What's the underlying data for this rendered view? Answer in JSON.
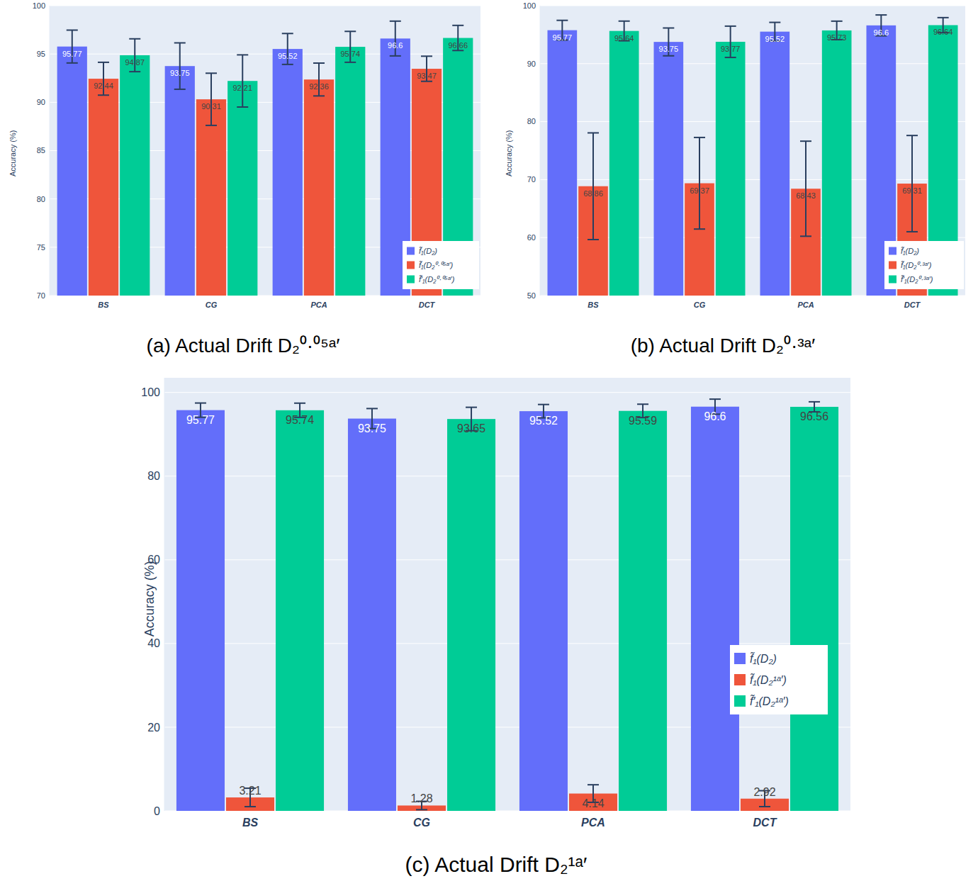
{
  "chart_data": [
    {
      "type": "bar",
      "title": "(a) Actual Drift D₂⁰·⁰⁵ᵃ′",
      "ylabel": "Accuracy (%)",
      "categories": [
        "BS",
        "CG",
        "PCA",
        "DCT"
      ],
      "series": [
        {
          "name": "f̃₁(D₂)",
          "color": "#636efa",
          "values": [
            95.77,
            93.75,
            95.52,
            96.6
          ],
          "errors": [
            1.7,
            2.4,
            1.6,
            1.8
          ]
        },
        {
          "name": "f̃₁(D₂⁰·⁰⁵ᵃ′)",
          "color": "#ef553b",
          "values": [
            92.44,
            90.31,
            92.36,
            93.47
          ],
          "errors": [
            1.7,
            2.7,
            1.7,
            1.3
          ]
        },
        {
          "name": "f̃′₁(D₂⁰·⁰⁵ᵃ′)",
          "color": "#00cc96",
          "values": [
            94.87,
            92.21,
            95.74,
            96.66
          ],
          "errors": [
            1.7,
            2.7,
            1.6,
            1.3
          ]
        }
      ],
      "ylim": [
        70,
        100
      ],
      "yticks": [
        70,
        75,
        80,
        85,
        90,
        95,
        100
      ],
      "grid": true,
      "legend": "bottom-right",
      "data_labels": true
    },
    {
      "type": "bar",
      "title": "(b) Actual Drift D₂⁰·³ᵃ′",
      "ylabel": "Accuracy (%)",
      "categories": [
        "BS",
        "CG",
        "PCA",
        "DCT"
      ],
      "series": [
        {
          "name": "f̃₁(D₂)",
          "color": "#636efa",
          "values": [
            95.77,
            93.75,
            95.52,
            96.6
          ],
          "errors": [
            1.7,
            2.4,
            1.6,
            1.8
          ]
        },
        {
          "name": "f̃₁(D₂⁰·³ᵃ′)",
          "color": "#ef553b",
          "values": [
            68.86,
            69.37,
            68.43,
            69.31
          ],
          "errors": [
            9.2,
            7.9,
            8.2,
            8.3
          ]
        },
        {
          "name": "f̃′₁(D₂⁰·³ᵃ′)",
          "color": "#00cc96",
          "values": [
            95.64,
            93.77,
            95.73,
            96.64
          ],
          "errors": [
            1.7,
            2.7,
            1.6,
            1.3
          ]
        }
      ],
      "ylim": [
        50,
        100
      ],
      "yticks": [
        50,
        60,
        70,
        80,
        90,
        100
      ],
      "grid": true,
      "legend": "bottom-right",
      "data_labels": true
    },
    {
      "type": "bar",
      "title": "(c) Actual Drift D₂¹ᵃ′",
      "ylabel": "Accuracy (%)",
      "categories": [
        "BS",
        "CG",
        "PCA",
        "DCT"
      ],
      "series": [
        {
          "name": "f̃₁(D₂)",
          "color": "#636efa",
          "values": [
            95.77,
            93.75,
            95.52,
            96.6
          ],
          "errors": [
            1.7,
            2.4,
            1.6,
            1.8
          ]
        },
        {
          "name": "f̃₁(D₂¹ᵃ′)",
          "color": "#ef553b",
          "values": [
            3.21,
            1.28,
            4.14,
            2.92
          ],
          "errors": [
            2.2,
            1.0,
            2.1,
            1.9
          ]
        },
        {
          "name": "f̃′₁(D₂¹ᵃ′)",
          "color": "#00cc96",
          "values": [
            95.74,
            93.65,
            95.59,
            96.56
          ],
          "errors": [
            1.7,
            2.8,
            1.6,
            1.2
          ]
        }
      ],
      "ylim": [
        0,
        103.5
      ],
      "yticks": [
        0,
        20,
        40,
        60,
        80,
        100
      ],
      "grid": true,
      "legend": "bottom-right",
      "data_labels": true
    }
  ]
}
